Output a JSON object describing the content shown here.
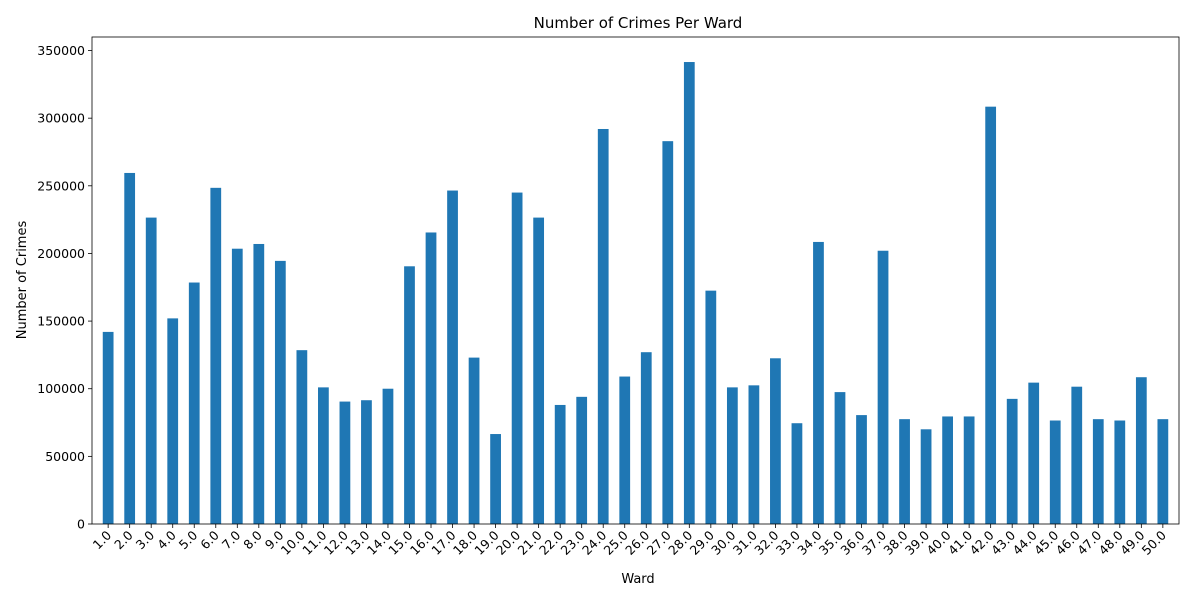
{
  "chart_data": {
    "type": "bar",
    "title": "Number of Crimes Per Ward",
    "xlabel": "Ward",
    "ylabel": "Number of Crimes",
    "categories": [
      "1.0",
      "2.0",
      "3.0",
      "4.0",
      "5.0",
      "6.0",
      "7.0",
      "8.0",
      "9.0",
      "10.0",
      "11.0",
      "12.0",
      "13.0",
      "14.0",
      "15.0",
      "16.0",
      "17.0",
      "18.0",
      "19.0",
      "20.0",
      "21.0",
      "22.0",
      "23.0",
      "24.0",
      "25.0",
      "26.0",
      "27.0",
      "28.0",
      "29.0",
      "30.0",
      "31.0",
      "32.0",
      "33.0",
      "34.0",
      "35.0",
      "36.0",
      "37.0",
      "38.0",
      "39.0",
      "40.0",
      "41.0",
      "42.0",
      "43.0",
      "44.0",
      "45.0",
      "46.0",
      "47.0",
      "48.0",
      "49.0",
      "50.0"
    ],
    "values": [
      142000,
      259500,
      226500,
      152000,
      178500,
      248500,
      203500,
      207000,
      194500,
      128500,
      101000,
      90500,
      91500,
      100000,
      190500,
      215500,
      246500,
      123000,
      66500,
      245000,
      226500,
      88000,
      94000,
      292000,
      109000,
      127000,
      283000,
      341500,
      172500,
      101000,
      102500,
      122500,
      74500,
      208500,
      97500,
      80500,
      202000,
      77500,
      70000,
      79500,
      79500,
      308500,
      92500,
      104500,
      76500,
      101500,
      77500,
      76500,
      108500,
      77500
    ],
    "ylim": [
      0,
      360000
    ],
    "yticks": [
      0,
      50000,
      100000,
      150000,
      200000,
      250000,
      300000,
      350000
    ],
    "grid": false,
    "legend": "none",
    "bar_color": "#1f77b4"
  }
}
